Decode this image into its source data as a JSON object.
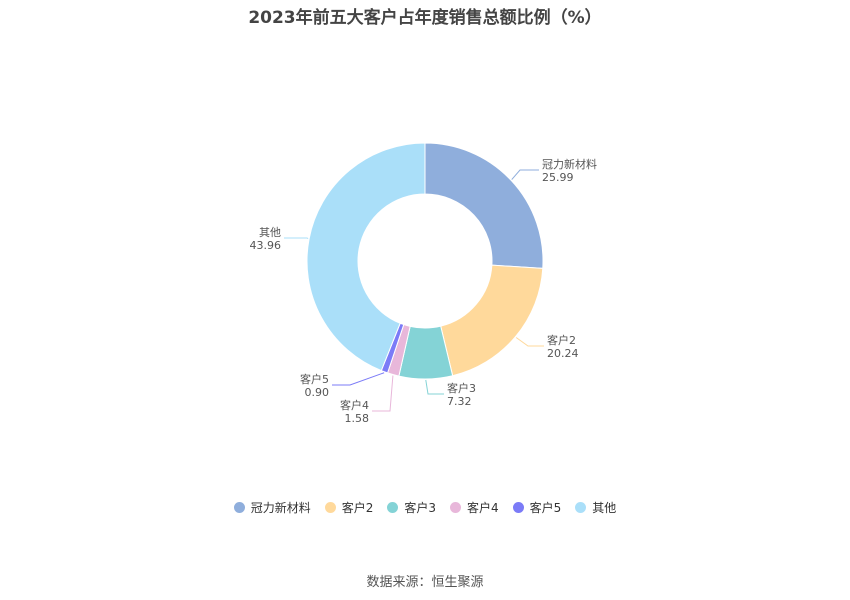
{
  "chart_data": {
    "type": "pie",
    "title": "2023年前五大客户占年度销售总额比例（%）",
    "categories": [
      "冠力新材料",
      "客户2",
      "客户3",
      "客户4",
      "客户5",
      "其他"
    ],
    "values": [
      25.99,
      20.24,
      7.32,
      1.58,
      0.9,
      43.96
    ],
    "value_labels": [
      "25.99",
      "20.24",
      "7.32",
      "1.58",
      "0.90",
      "43.96"
    ],
    "colors": [
      "#8FAEDC",
      "#FFD99B",
      "#84D3D6",
      "#E8B7DA",
      "#7B7BF7",
      "#AADFF9"
    ],
    "donut": true,
    "legend_position": "bottom"
  },
  "footer": {
    "source": "数据来源：恒生聚源"
  }
}
